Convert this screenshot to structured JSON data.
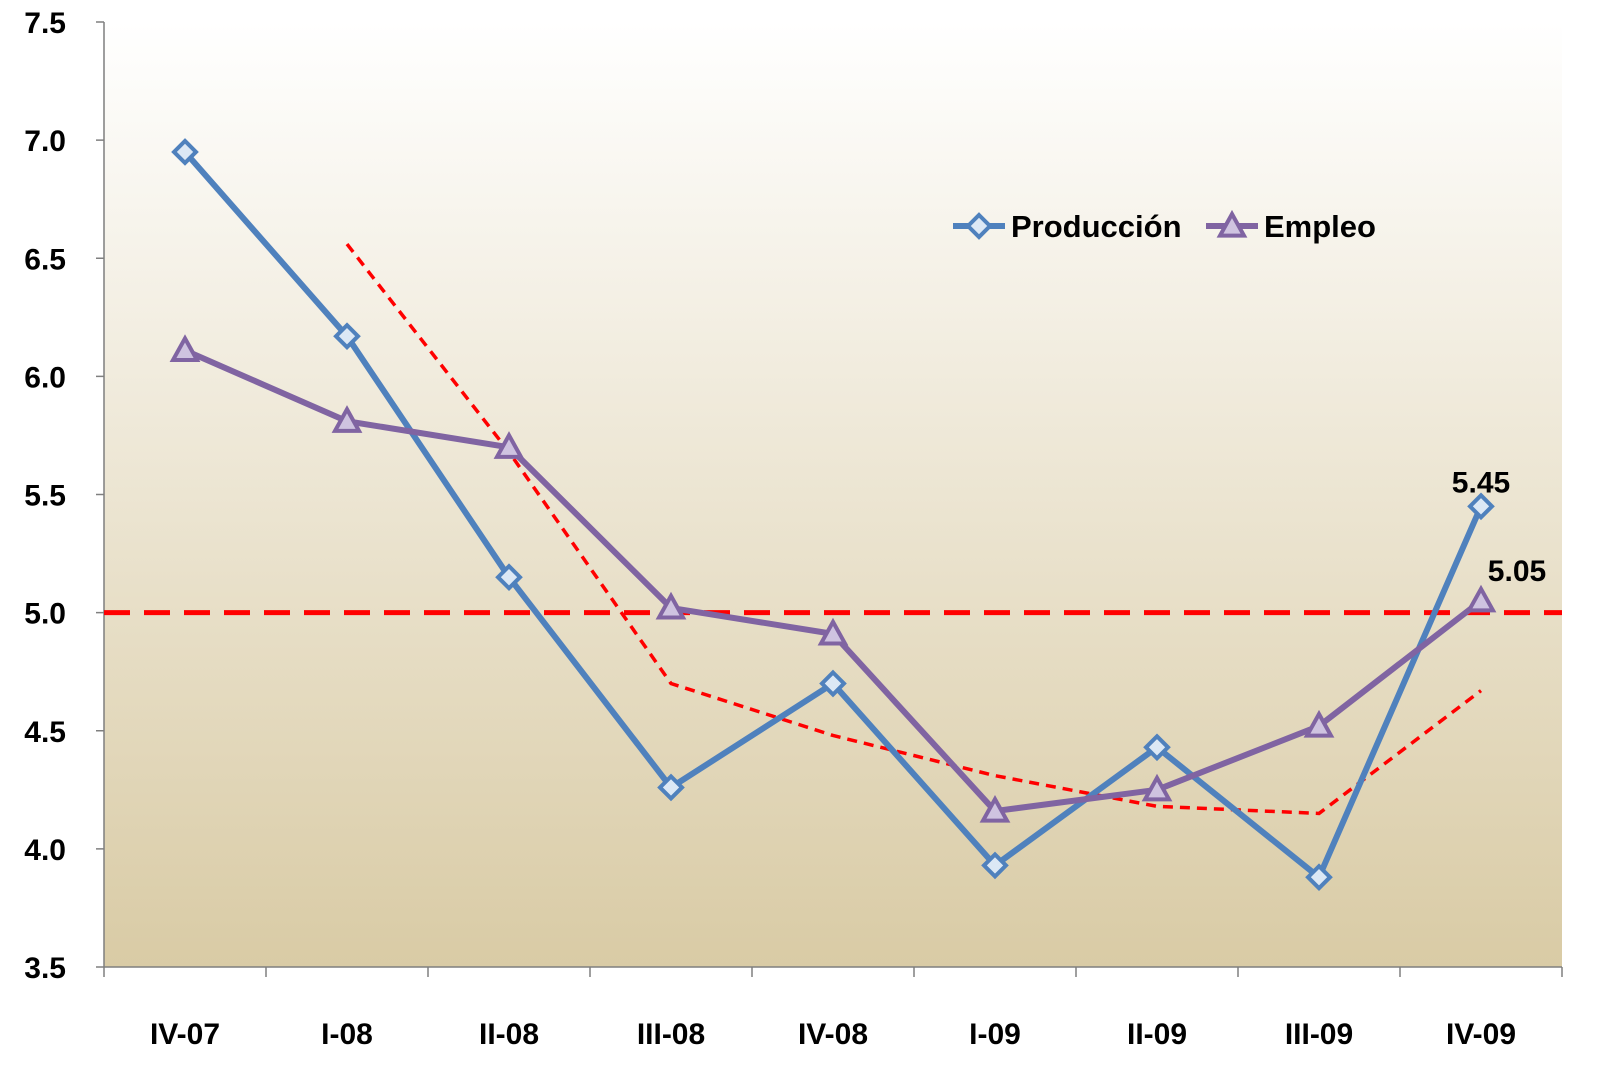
{
  "chart_data": {
    "type": "line",
    "title": "",
    "xlabel": "",
    "ylabel": "",
    "categories": [
      "IV-07",
      "I-08",
      "II-08",
      "III-08",
      "IV-08",
      "I-09",
      "II-09",
      "III-09",
      "IV-09"
    ],
    "ylim": [
      3.5,
      7.5
    ],
    "yticks": [
      "3.5",
      "4.0",
      "4.5",
      "5.0",
      "5.5",
      "6.0",
      "6.5",
      "7.0",
      "7.5"
    ],
    "series": [
      {
        "name": "Producción",
        "values": [
          6.95,
          6.17,
          5.15,
          4.26,
          4.7,
          3.93,
          4.43,
          3.88,
          5.45
        ],
        "color": "#4f81bd",
        "marker": "diamond"
      },
      {
        "name": "Empleo",
        "values": [
          6.11,
          5.81,
          5.7,
          5.02,
          4.91,
          4.16,
          4.25,
          4.52,
          5.05
        ],
        "color": "#8064a2",
        "marker": "triangle"
      }
    ],
    "reference_line": {
      "value": 5.0,
      "color": "#ff0000",
      "style": "dashed"
    },
    "trend_line": {
      "color": "#ff0000",
      "style": "dotted",
      "x_start": "I-08",
      "values": [
        6.56,
        5.68,
        4.7,
        4.48,
        4.31,
        4.18,
        4.15,
        4.67
      ]
    },
    "data_labels": [
      {
        "series": "Producción",
        "category": "IV-09",
        "text": "5.45"
      },
      {
        "series": "Empleo",
        "category": "IV-09",
        "text": "5.05"
      }
    ],
    "legend": {
      "position": "top-right",
      "items": [
        "Producción",
        "Empleo"
      ]
    },
    "background": {
      "top": "#ffffff",
      "bottom": "#d9cba5"
    },
    "grid": false
  }
}
